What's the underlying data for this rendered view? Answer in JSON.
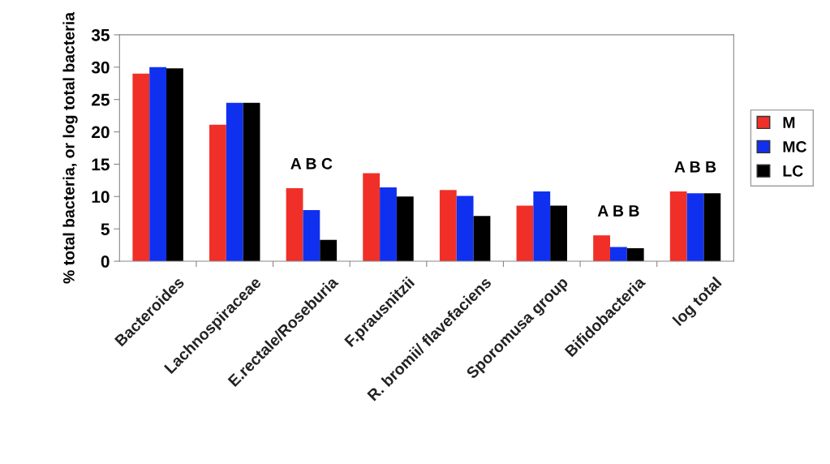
{
  "chart_data": {
    "type": "bar",
    "ylabel": "% total bacteria, or log total bacteria",
    "categories": [
      "Bacteroides",
      "Lachnospiraceae",
      "E.rectale/Roseburia",
      "F.prausnitzii",
      "R. bromii/ flavefaciens",
      "Sporomusa group",
      "Bifidobacteria",
      "log total"
    ],
    "series": [
      {
        "name": "M",
        "color": "#f03028",
        "values": [
          29.0,
          21.1,
          11.3,
          13.6,
          11.0,
          8.6,
          4.0,
          10.8
        ]
      },
      {
        "name": "MC",
        "color": "#1030f0",
        "values": [
          30.0,
          24.5,
          7.9,
          11.4,
          10.1,
          10.8,
          2.2,
          10.5
        ]
      },
      {
        "name": "LC",
        "color": "#000000",
        "values": [
          29.8,
          24.5,
          3.3,
          10.0,
          7.0,
          8.6,
          2.0,
          10.5
        ]
      }
    ],
    "annotations": [
      "A B C",
      "A B B",
      "A B B"
    ],
    "ylim": [
      0,
      35
    ],
    "yticks": [
      0,
      5,
      10,
      15,
      20,
      25,
      30,
      35
    ],
    "grid": false,
    "legend": "right"
  }
}
